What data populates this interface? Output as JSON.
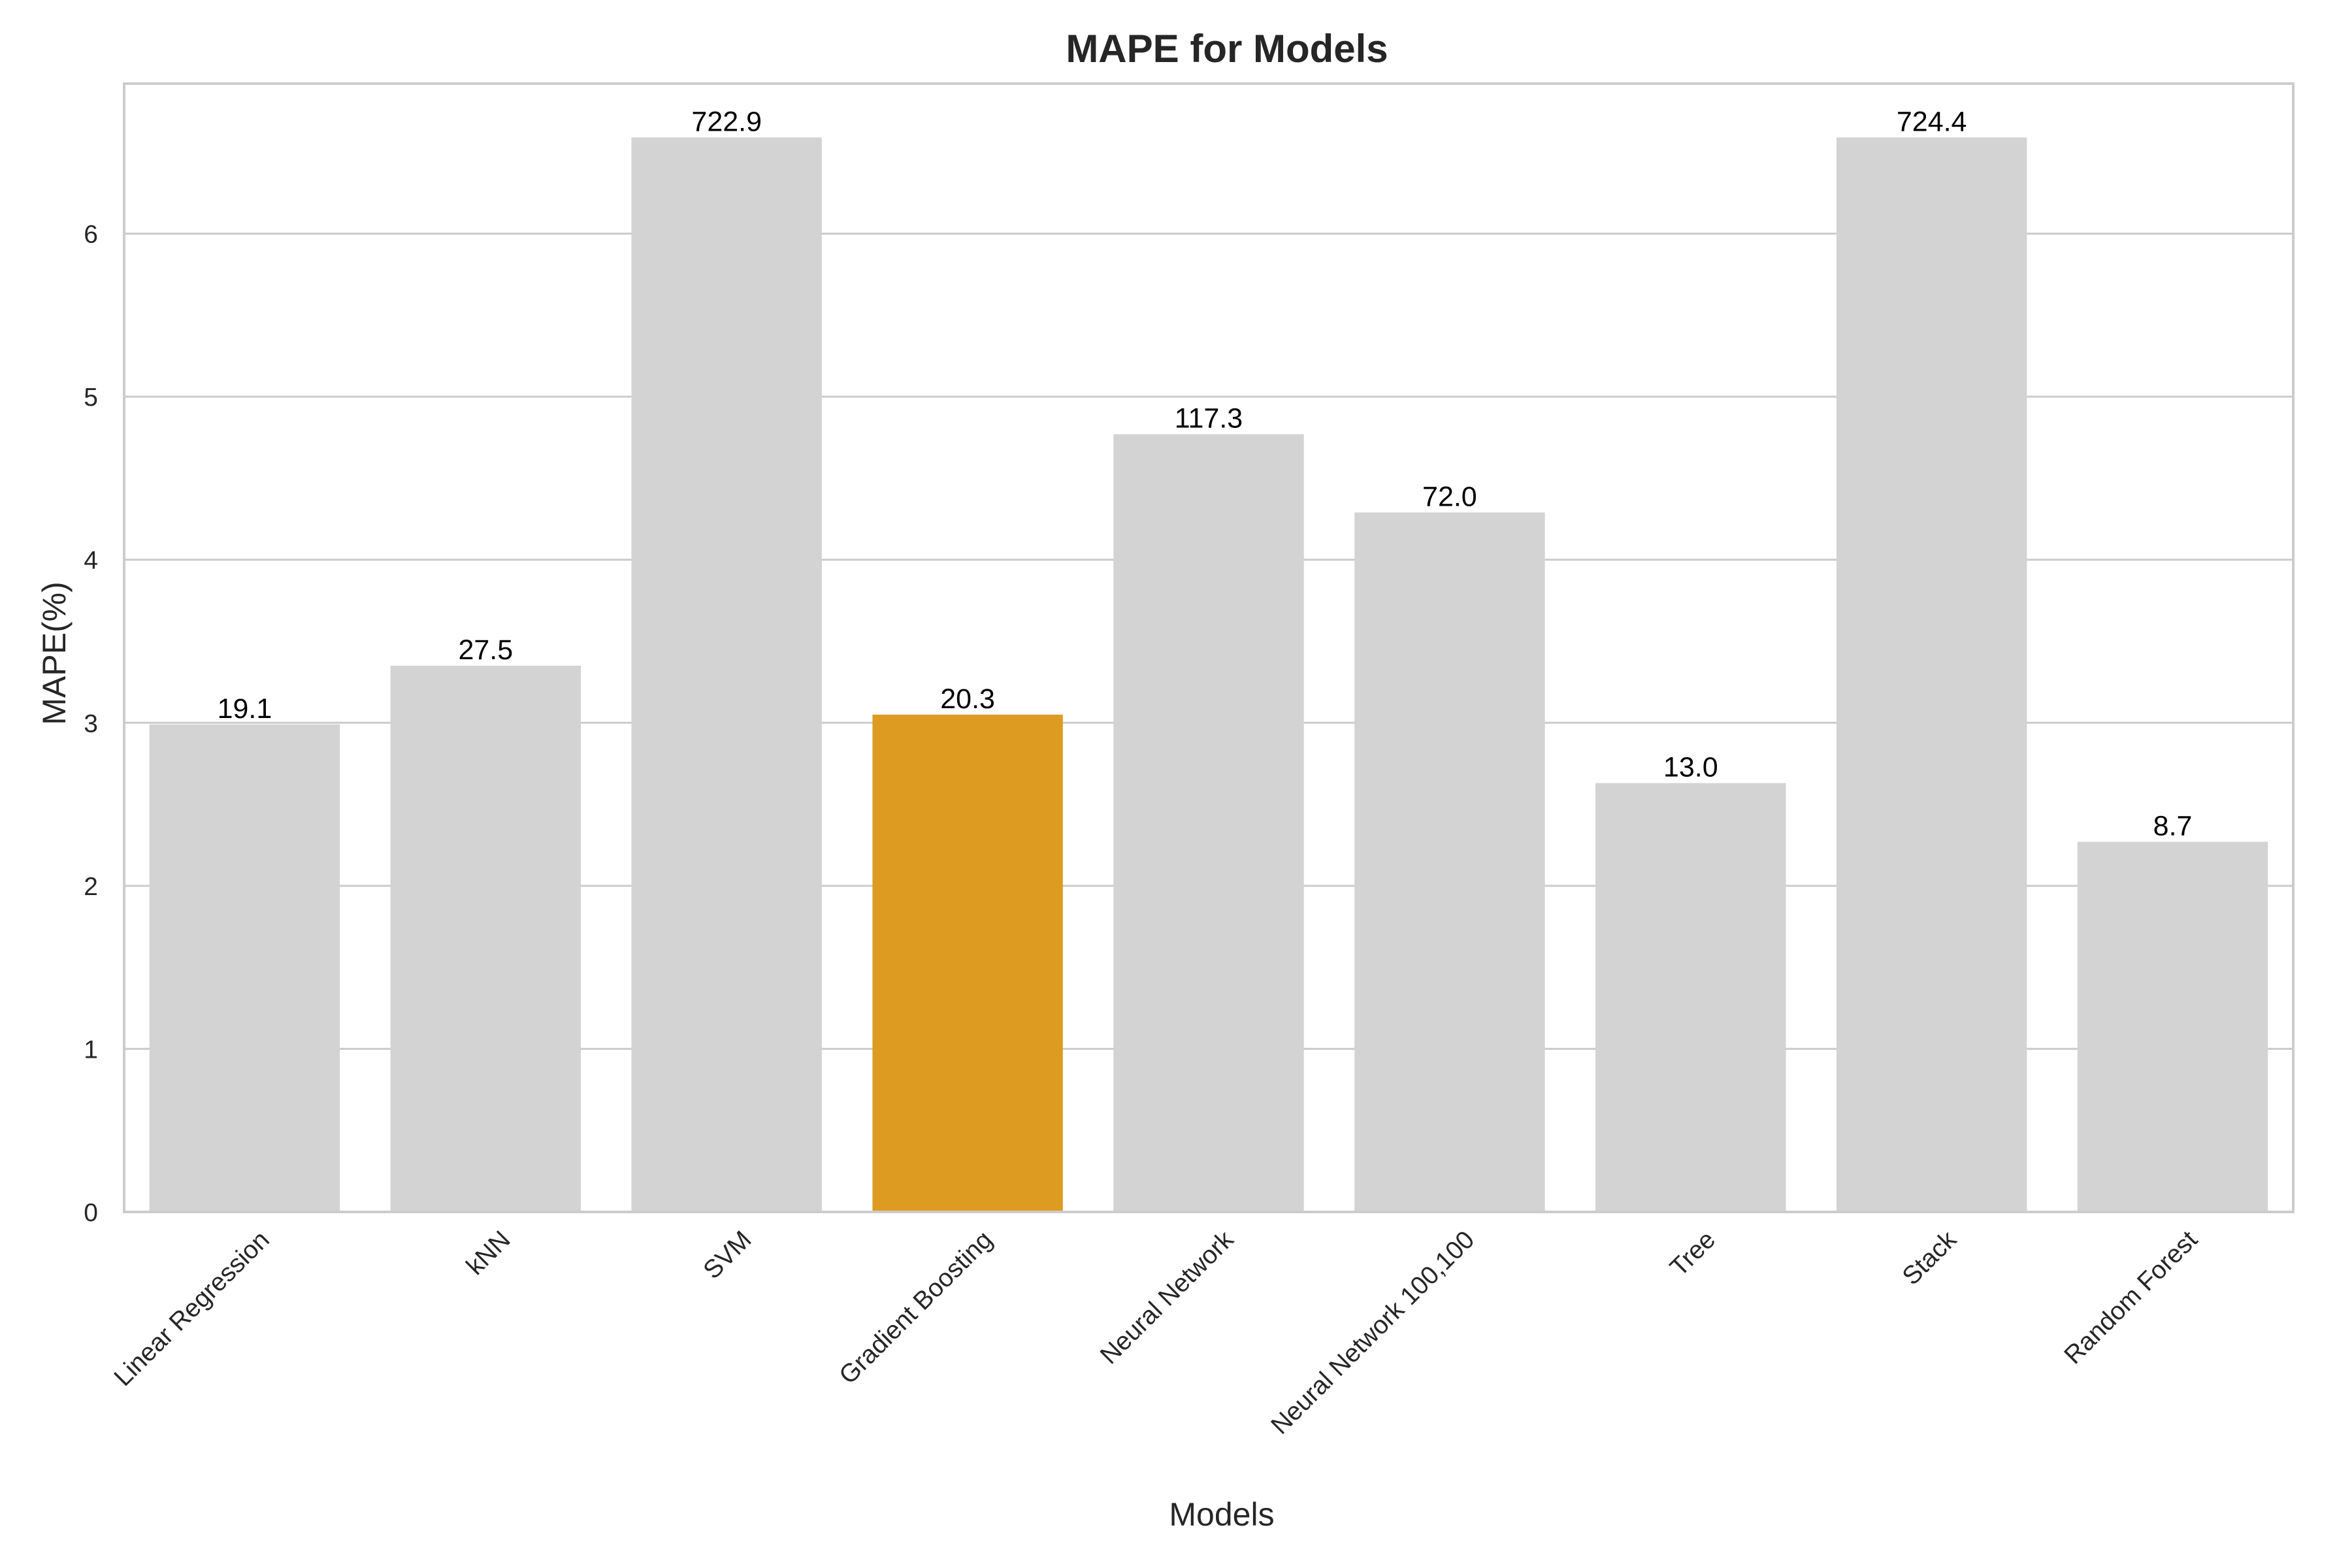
{
  "chart_data": {
    "type": "bar",
    "title": "MAPE for Models",
    "xlabel": "Models",
    "ylabel": "MAPE(%)",
    "ylim": [
      0,
      6.92
    ],
    "yticks": [
      0,
      1,
      2,
      3,
      4,
      5,
      6
    ],
    "grid": "horizontal",
    "categories": [
      "Linear Regression",
      "kNN",
      "SVM",
      "Gradient Boosting",
      "Neural Network",
      "Neural Network 100,100",
      "Tree",
      "Stack",
      "Random Forest"
    ],
    "values": [
      2.99,
      3.35,
      6.59,
      3.05,
      4.77,
      4.29,
      2.63,
      6.59,
      2.27
    ],
    "data_labels": [
      "19.1",
      "27.5",
      "722.9",
      "20.3",
      "117.3",
      "72.0",
      "13.0",
      "724.4",
      "8.7"
    ],
    "highlighted_category": "Gradient Boosting",
    "colors": {
      "default": "#d3d3d3",
      "highlight": "#dd9c21",
      "grid": "#cccccc",
      "spine": "#cccccc"
    }
  }
}
